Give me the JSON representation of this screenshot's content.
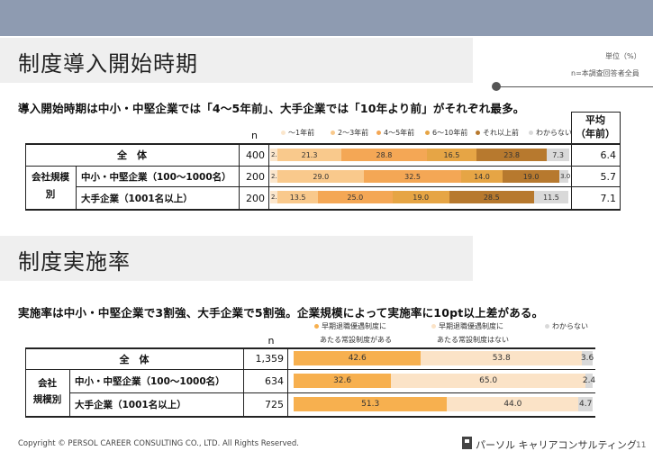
{
  "colors": {
    "c1": "#fbe6cc",
    "c2": "#f9c98c",
    "c3": "#f4a755",
    "c4": "#e6a545",
    "c5": "#b7792e",
    "c6": "#d9d9d9",
    "imp1": "#f7b04f",
    "imp2": "#fbe3c7",
    "imp3": "#d9d9d9"
  },
  "unit": {
    "label": "単位（%）",
    "base": "n=本調査回答者全員"
  },
  "section1": {
    "title": "制度導入開始時期",
    "headline": "導入開始時期は中小・中堅企業では「4〜5年前」、大手企業では「10年より前」がそれぞれ最多。",
    "n_header": "n",
    "avg_header_1": "平均",
    "avg_header_2": "（年前）",
    "group_label_1": "会社規模",
    "group_label_2": "別",
    "legend": [
      "〜1年前",
      "2〜3年前",
      "4〜5年前",
      "6〜10年前",
      "それ以上前",
      "わからない"
    ],
    "rows": [
      {
        "label": "全　体",
        "n": "400",
        "avg": "6.4"
      },
      {
        "label": "中小・中堅企業（100〜1000名）",
        "n": "200",
        "avg": "5.7"
      },
      {
        "label": "大手企業（1001名以上）",
        "n": "200",
        "avg": "7.1"
      }
    ]
  },
  "section2": {
    "title": "制度実施率",
    "headline": "実施率は中小・中堅企業で3割強、大手企業で5割強。企業規模によって実施率に10pt以上差がある。",
    "n_header": "n",
    "group_label_1": "会社",
    "group_label_2": "規模別",
    "legend": [
      {
        "line1": "早期退職優遇制度に",
        "line2": "あたる常設制度がある"
      },
      {
        "line1": "早期退職優遇制度に",
        "line2": "あたる常設制度はない"
      },
      {
        "line1": "わからない",
        "line2": ""
      }
    ],
    "rows": [
      {
        "label": "全　体",
        "n": "1,359"
      },
      {
        "label": "中小・中堅企業（100〜1000名）",
        "n": "634"
      },
      {
        "label": "大手企業（1001名以上）",
        "n": "725"
      }
    ]
  },
  "chart_data": [
    {
      "type": "bar",
      "stacked": true,
      "orientation": "horizontal",
      "title": "制度導入開始時期",
      "categories": [
        "全　体",
        "中小・中堅企業（100〜1000名）",
        "大手企業（1001名以上）"
      ],
      "series": [
        {
          "name": "〜1年前",
          "values": [
            2.5,
            2.5,
            2.5
          ]
        },
        {
          "name": "2〜3年前",
          "values": [
            21.3,
            29.0,
            13.5
          ]
        },
        {
          "name": "4〜5年前",
          "values": [
            28.8,
            32.5,
            25.0
          ]
        },
        {
          "name": "6〜10年前",
          "values": [
            16.5,
            14.0,
            19.0
          ]
        },
        {
          "name": "それ以上前",
          "values": [
            23.8,
            19.0,
            28.5
          ]
        },
        {
          "name": "わからない",
          "values": [
            7.3,
            3.0,
            11.5
          ]
        }
      ],
      "xlim": [
        0,
        100
      ]
    },
    {
      "type": "bar",
      "stacked": true,
      "orientation": "horizontal",
      "title": "制度実施率",
      "categories": [
        "全　体",
        "中小・中堅企業（100〜1000名）",
        "大手企業（1001名以上）"
      ],
      "series": [
        {
          "name": "早期退職優遇制度にあたる常設制度がある",
          "values": [
            42.6,
            32.6,
            51.3
          ]
        },
        {
          "name": "早期退職優遇制度にあたる常設制度はない",
          "values": [
            53.8,
            65.0,
            44.0
          ]
        },
        {
          "name": "わからない",
          "values": [
            3.6,
            2.4,
            4.7
          ]
        }
      ],
      "xlim": [
        0,
        100
      ]
    }
  ],
  "footer": {
    "copyright": "Copyright © PERSOL CAREER CONSULTING CO., LTD. All Rights Reserved.",
    "brand": "パーソル キャリアコンサルティング",
    "page": "11"
  }
}
